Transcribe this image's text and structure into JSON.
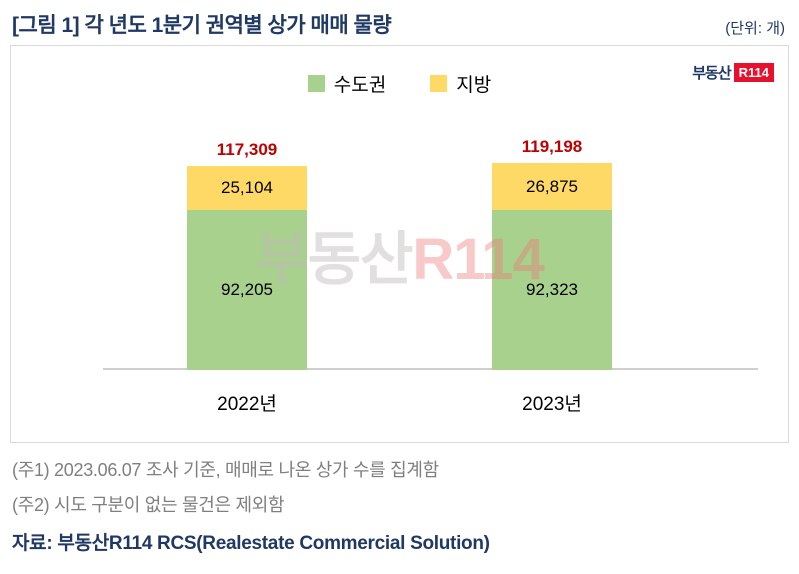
{
  "header": {
    "title": "[그림 1] 각 년도 1분기 권역별 상가 매매 물량",
    "unit": "(단위: 개)"
  },
  "logo": {
    "text": "부동산",
    "mark": "R114"
  },
  "watermark": {
    "text_left": "부동산",
    "text_right": "R114"
  },
  "chart_data": {
    "type": "bar",
    "stacked": true,
    "categories": [
      "2022년",
      "2023년"
    ],
    "series": [
      {
        "name": "수도권",
        "color": "#A9D18E",
        "values": [
          92205,
          92323
        ],
        "labels": [
          "92,205",
          "92,323"
        ]
      },
      {
        "name": "지방",
        "color": "#FFD966",
        "values": [
          25104,
          26875
        ],
        "labels": [
          "25,104",
          "26,875"
        ]
      }
    ],
    "totals": [
      117309,
      119198
    ],
    "total_labels": [
      "117,309",
      "119,198"
    ],
    "title": "각 년도 1분기 권역별 상가 매매 물량",
    "unit": "개",
    "ylim": [
      0,
      125000
    ],
    "grid": false,
    "legend_position": "top"
  },
  "notes": [
    "(주1) 2023.06.07 조사 기준, 매매로 나온 상가 수를 집계함",
    "(주2) 시도 구분이 없는 물건은 제외함"
  ],
  "source": "자료: 부동산R114 RCS(Realestate Commercial Solution)"
}
